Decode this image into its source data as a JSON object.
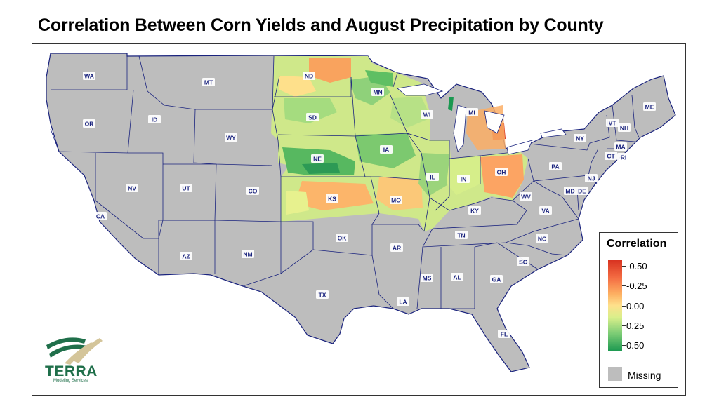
{
  "title": "Correlation Between Corn Yields and August Precipitation by County",
  "legend": {
    "title": "Correlation",
    "ticks": [
      "-0.50",
      "-0.25",
      "0.00",
      "0.25",
      "0.50"
    ],
    "missing_label": "Missing",
    "colors": {
      "neg": "#d7301f",
      "mid": "#fee08b",
      "pos": "#1a9850",
      "missing": "#bdbdbd"
    }
  },
  "logo": {
    "name": "TERRA",
    "subtitle": "Modeling Services",
    "icon": "terra-swoosh-icon"
  },
  "states": [
    "WA",
    "OR",
    "CA",
    "ID",
    "NV",
    "MT",
    "WY",
    "UT",
    "AZ",
    "CO",
    "NM",
    "ND",
    "SD",
    "NE",
    "KS",
    "OK",
    "TX",
    "MN",
    "IA",
    "MO",
    "AR",
    "LA",
    "WI",
    "IL",
    "MI",
    "IN",
    "KY",
    "TN",
    "MS",
    "AL",
    "OH",
    "GA",
    "FL",
    "SC",
    "NC",
    "VA",
    "WV",
    "PA",
    "NY",
    "ME",
    "VT",
    "NH",
    "MA",
    "CT",
    "RI",
    "NJ",
    "DE",
    "MD"
  ]
}
